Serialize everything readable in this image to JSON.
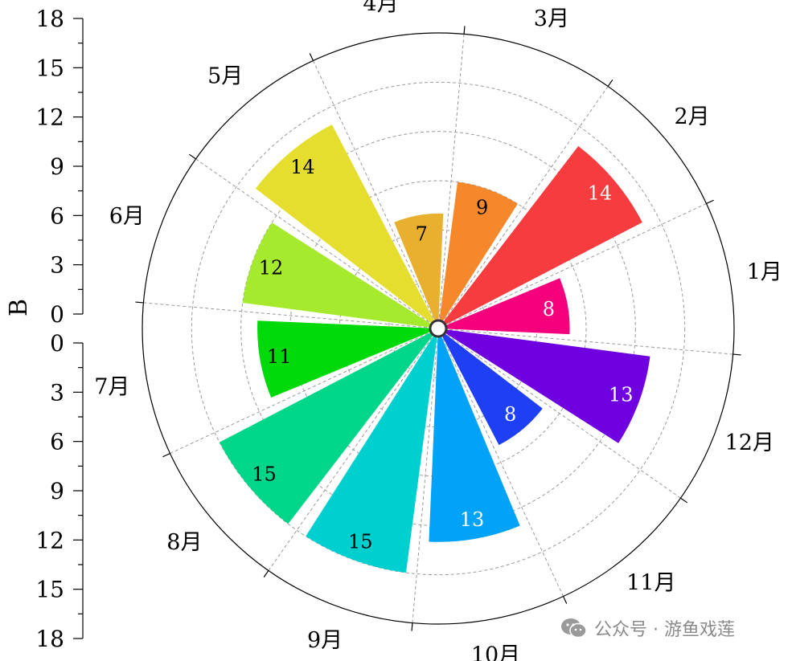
{
  "chart_data": {
    "type": "polar-bar",
    "ylabel": "B",
    "radial_range": [
      0,
      18
    ],
    "radial_ticks": [
      0,
      3,
      6,
      9,
      12,
      15,
      18
    ],
    "grid": true,
    "start_angle_deg": 10,
    "direction": "counterclockwise",
    "categories": [
      "1月",
      "2月",
      "3月",
      "4月",
      "5月",
      "6月",
      "7月",
      "8月",
      "9月",
      "10月",
      "11月",
      "12月"
    ],
    "values": [
      8,
      14,
      9,
      7,
      14,
      12,
      11,
      15,
      15,
      13,
      8,
      13
    ],
    "colors": [
      "#F5007C",
      "#F73C40",
      "#F5882A",
      "#E8B02E",
      "#E6DE2E",
      "#A6EA2E",
      "#00D90A",
      "#00D68A",
      "#00CFCF",
      "#00A3F7",
      "#1F3FF5",
      "#6F00E0"
    ],
    "label_colors": [
      "#ffffff",
      "#ffffff",
      "#000000",
      "#000000",
      "#000000",
      "#000000",
      "#000000",
      "#000000",
      "#000000",
      "#ffffff",
      "#ffffff",
      "#ffffff"
    ]
  },
  "watermark": {
    "icon": "wechat-icon",
    "text": "公众号 · 游鱼戏莲"
  }
}
